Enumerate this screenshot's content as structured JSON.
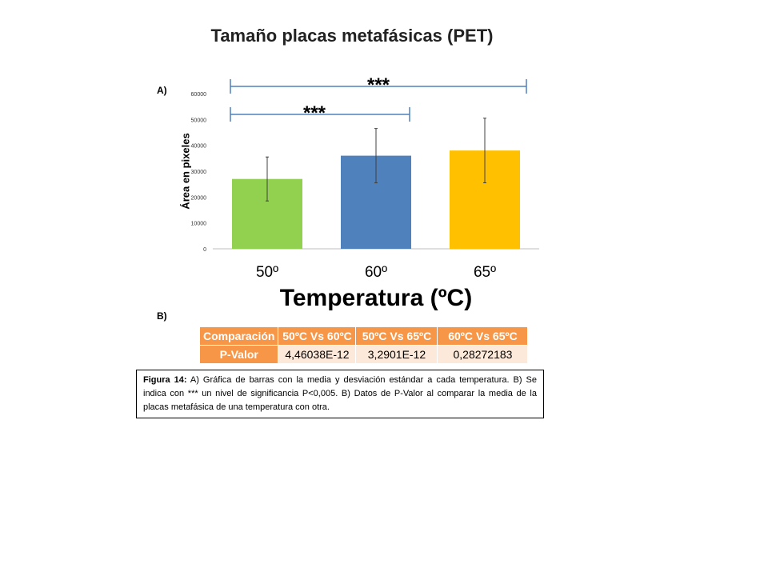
{
  "title": "Tamaño placas metafásicas  (PET)",
  "panel_a_label": "A)",
  "panel_b_label": "B)",
  "chart_data": {
    "type": "bar",
    "title": "Tamaño placas metafásicas  (PET)",
    "xlabel": "Temperatura (ºC)",
    "ylabel": "Área en pixeles",
    "categories": [
      "50º",
      "60º",
      "65º"
    ],
    "values": [
      27000,
      36000,
      38000
    ],
    "errors": [
      8500,
      10500,
      12500
    ],
    "colors": [
      "#92d050",
      "#4f81bd",
      "#ffc000"
    ],
    "ylim": [
      0,
      60000
    ],
    "yticks": [
      0,
      10000,
      20000,
      30000,
      40000,
      50000,
      60000
    ],
    "grid": false,
    "significance": [
      {
        "from": "50º",
        "to": "65º",
        "label": "***",
        "level": "upper"
      },
      {
        "from": "50º",
        "to": "60º",
        "label": "***",
        "level": "lower"
      }
    ]
  },
  "pvalue_table": {
    "headers": [
      "Comparación",
      "50ºC Vs 60ºC",
      "50ºC Vs 65ºC",
      "60ºC Vs 65ºC"
    ],
    "row_label": "P-Valor",
    "values": [
      "4,46038E-12",
      "3,2901E-12",
      "0,28272183"
    ]
  },
  "caption": {
    "label": "Figura 14:",
    "text": " A) Gráfica de barras con la media y desviación estándar a cada temperatura. B) Se indica con *** un nivel de significancia P<0,005. B) Datos de P-Valor al comparar la media de la placas metafásica de una temperatura con otra."
  }
}
